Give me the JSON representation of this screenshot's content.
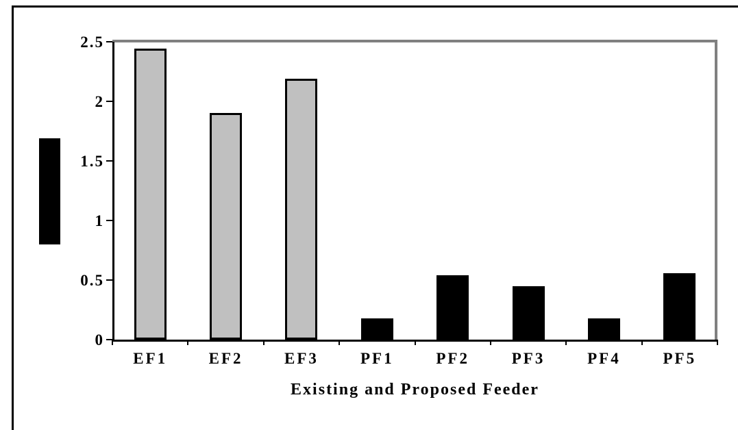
{
  "figure": {
    "background_color": "#ffffff",
    "frame_color": "#000000",
    "plot_border_color": "#808080",
    "axis_color": "#000000",
    "y_axis_title_block_color": "#000000"
  },
  "chart_data": {
    "type": "bar",
    "categories": [
      "EF1",
      "EF2",
      "EF3",
      "PF1",
      "PF2",
      "PF3",
      "PF4",
      "PF5"
    ],
    "values": [
      2.44,
      1.9,
      2.19,
      0.18,
      0.54,
      0.45,
      0.18,
      0.56
    ],
    "bar_colors": [
      "#c0c0c0",
      "#c0c0c0",
      "#c0c0c0",
      "#000000",
      "#000000",
      "#000000",
      "#000000",
      "#000000"
    ],
    "bar_border_color": "#000000",
    "title": "",
    "xlabel": "Existing and Proposed Feeder",
    "ylabel": "",
    "ylim": [
      0,
      2.5
    ],
    "y_ticks": [
      0,
      0.5,
      1,
      1.5,
      2,
      2.5
    ],
    "y_tick_labels": [
      "0",
      "0.5",
      "1",
      "1.5",
      "2",
      "2.5"
    ],
    "grid": "off",
    "legend": "none"
  }
}
